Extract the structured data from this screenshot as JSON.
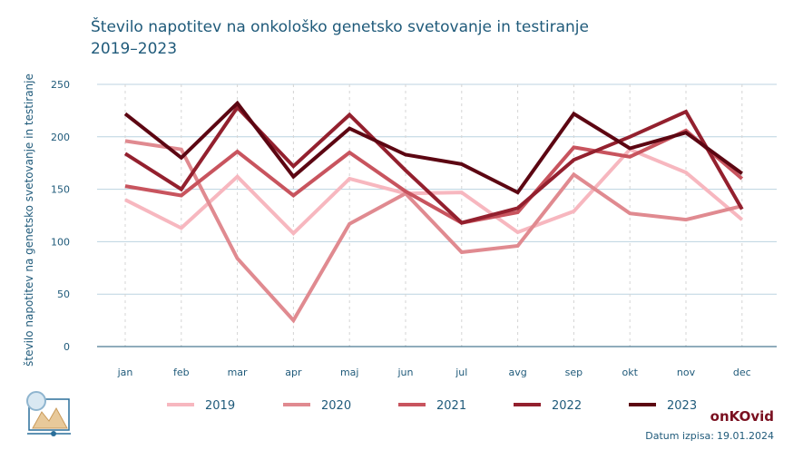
{
  "title_line1": "Število napotitev na onkološko genetsko svetovanje in testiranje",
  "title_line2": "2019–2023",
  "brand": "onKOvid",
  "printed_label": "Datum izpisa:",
  "printed_date": "19.01.2024",
  "chart_data": {
    "type": "line",
    "title": "Število napotitev na onkološko genetsko svetovanje in testiranje 2019–2023",
    "xlabel": "",
    "ylabel": "število napotitev na genetsko svetovanje in testiranje",
    "ylim": [
      0,
      250
    ],
    "yticks": [
      0,
      50,
      100,
      150,
      200,
      250
    ],
    "grid": "horizontal solid, vertical dashed",
    "legend_position": "bottom",
    "categories": [
      "jan",
      "feb",
      "mar",
      "apr",
      "maj",
      "jun",
      "jul",
      "avg",
      "sep",
      "okt",
      "nov",
      "dec"
    ],
    "series": [
      {
        "name": "2019",
        "color": "#f7b7bf",
        "values": [
          140,
          113,
          162,
          108,
          160,
          146,
          147,
          109,
          129,
          188,
          166,
          121
        ]
      },
      {
        "name": "2020",
        "color": "#e08a90",
        "values": [
          196,
          188,
          84,
          25,
          117,
          146,
          90,
          96,
          164,
          127,
          121,
          134
        ]
      },
      {
        "name": "2021",
        "color": "#c8545e",
        "values": [
          153,
          144,
          186,
          144,
          185,
          148,
          118,
          128,
          190,
          181,
          206,
          160
        ]
      },
      {
        "name": "2022",
        "color": "#93202e",
        "values": [
          184,
          150,
          228,
          172,
          221,
          168,
          118,
          132,
          178,
          200,
          224,
          131
        ]
      },
      {
        "name": "2023",
        "color": "#5c0612",
        "values": [
          222,
          180,
          232,
          162,
          208,
          183,
          174,
          147,
          222,
          189,
          204,
          165
        ]
      }
    ]
  }
}
